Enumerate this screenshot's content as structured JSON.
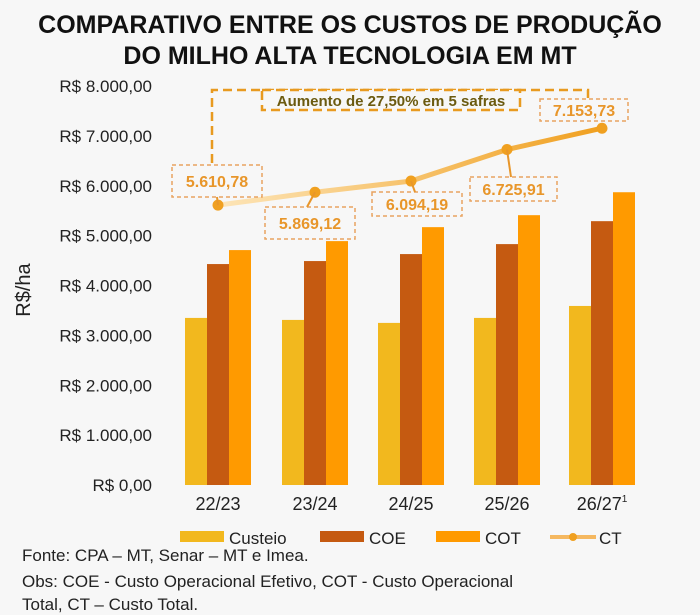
{
  "chart_data": {
    "type": "bar",
    "title": "COMPARATIVO ENTRE OS CUSTOS DE PRODUÇÃO DO MILHO ALTA TECNOLOGIA EM MT",
    "title_lines": [
      "COMPARATIVO ENTRE OS CUSTOS DE PRODUÇÃO",
      "DO MILHO ALTA TECNOLOGIA EM MT"
    ],
    "ylabel": "R$/ha",
    "xlabel": "",
    "ylim": [
      0,
      8000
    ],
    "yticks": [
      "R$ 0,00",
      "R$ 1.000,00",
      "R$ 2.000,00",
      "R$ 3.000,00",
      "R$ 4.000,00",
      "R$ 5.000,00",
      "R$ 6.000,00",
      "R$ 7.000,00",
      "R$ 8.000,00"
    ],
    "categories": [
      "22/23",
      "23/24",
      "24/25",
      "25/26",
      "26/27"
    ],
    "category_superscripts": [
      "",
      "",
      "",
      "",
      "1"
    ],
    "series": [
      {
        "name": "Custeio",
        "type": "bar",
        "color": "#f2b81e",
        "values": [
          3350,
          3310,
          3250,
          3350,
          3590
        ]
      },
      {
        "name": "COE",
        "type": "bar",
        "color": "#c55a11",
        "values": [
          4430,
          4490,
          4630,
          4830,
          5290
        ]
      },
      {
        "name": "COT",
        "type": "bar",
        "color": "#ff9a00",
        "values": [
          4710,
          4890,
          5170,
          5410,
          5870
        ]
      },
      {
        "name": "CT",
        "type": "line",
        "color": "#f5a623",
        "values": [
          5610.78,
          5869.12,
          6094.19,
          6725.91,
          7153.73
        ],
        "labels": [
          "5.610,78",
          "5.869,12",
          "6.094,19",
          "6.725,91",
          "7.153,73"
        ]
      }
    ],
    "annotation": "Aumento de 27,50% em 5 safras",
    "legend_position": "bottom",
    "grid": false
  },
  "footer": {
    "source": "Fonte: CPA – MT, Senar – MT e Imea.",
    "obs": "Obs: COE - Custo Operacional Efetivo, COT - Custo Operacional",
    "obs_cont": "Total, CT – Custo Total."
  }
}
